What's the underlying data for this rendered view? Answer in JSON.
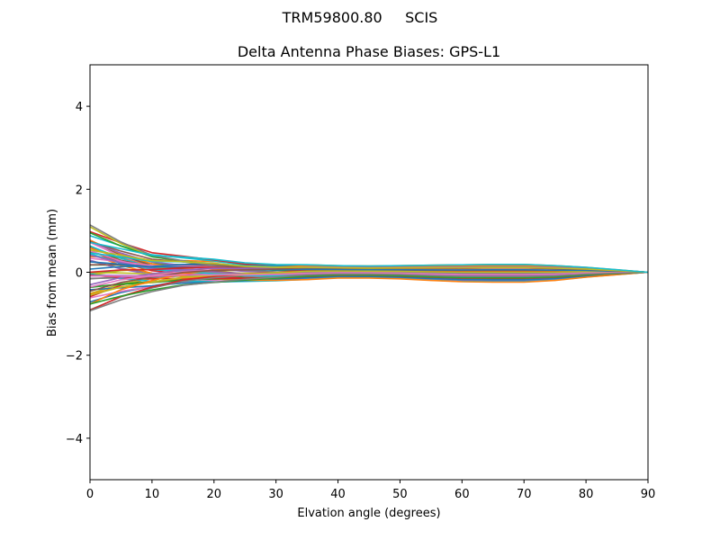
{
  "figure": {
    "suptitle": "TRM59800.80     SCIS",
    "title": "Delta Antenna Phase Biases: GPS-L1"
  },
  "chart_data": {
    "type": "line",
    "title": "Delta Antenna Phase Biases: GPS-L1",
    "suptitle": "TRM59800.80     SCIS",
    "xlabel": "Elvation angle (degrees)",
    "ylabel": "Bias from mean (mm)",
    "xlim": [
      0,
      90
    ],
    "ylim": [
      -5,
      5
    ],
    "xticks": [
      0,
      10,
      20,
      30,
      40,
      50,
      60,
      70,
      80,
      90
    ],
    "yticks": [
      -4,
      -2,
      0,
      2,
      4
    ],
    "ytick_labels": [
      "−4",
      "−2",
      "0",
      "2",
      "4"
    ],
    "grid": false,
    "legend": null,
    "x": [
      0,
      5,
      10,
      15,
      20,
      25,
      30,
      35,
      40,
      45,
      50,
      55,
      60,
      65,
      70,
      75,
      80,
      85,
      90
    ],
    "series_count": 60,
    "series_description": "Many overlapping curves (one per satellite/epoch), starting between about -0.95 and +1.15 mm at 0 deg elevation, converging to roughly +/-0.2 mm by 30-40 deg, slight spread near 60-70 deg, and all reaching 0 at 90 deg.",
    "envelope": {
      "upper": [
        1.15,
        0.85,
        0.58,
        0.48,
        0.38,
        0.26,
        0.2,
        0.18,
        0.16,
        0.15,
        0.16,
        0.17,
        0.18,
        0.19,
        0.19,
        0.16,
        0.12,
        0.06,
        0.0
      ],
      "lower": [
        -0.95,
        -0.75,
        -0.58,
        -0.45,
        -0.38,
        -0.3,
        -0.24,
        -0.18,
        -0.14,
        -0.14,
        -0.16,
        -0.2,
        -0.23,
        -0.24,
        -0.24,
        -0.2,
        -0.12,
        -0.06,
        0.0
      ]
    },
    "colors": [
      "#1f77b4",
      "#ff7f0e",
      "#2ca02c",
      "#d62728",
      "#9467bd",
      "#8c564b",
      "#e377c2",
      "#7f7f7f",
      "#bcbd22",
      "#17becf"
    ]
  }
}
